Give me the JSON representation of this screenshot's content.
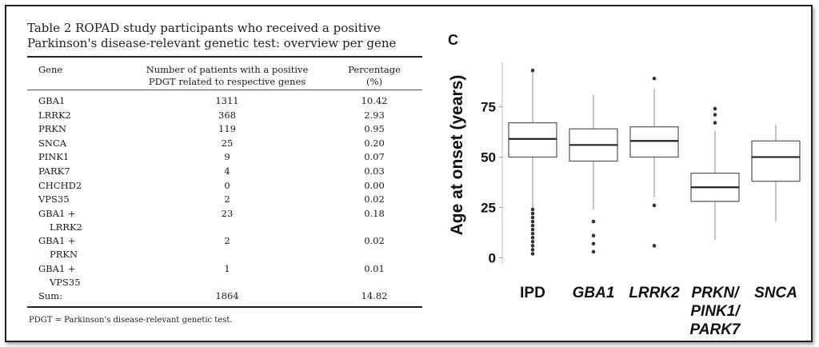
{
  "table": {
    "title_line1": "Table 2 ROPAD study participants who received a positive",
    "title_line2": "Parkinson's disease-relevant genetic test: overview per gene",
    "headers": {
      "gene": "Gene",
      "count_line1": "Number of patients with a positive",
      "count_line2": "PDGT related to respective genes",
      "pct_line1": "Percentage",
      "pct_line2": "(%)"
    },
    "rows": [
      {
        "gene": "GBA1",
        "count": "1311",
        "pct": "10.42"
      },
      {
        "gene": "LRRK2",
        "count": "368",
        "pct": "2.93"
      },
      {
        "gene": "PRKN",
        "count": "119",
        "pct": "0.95"
      },
      {
        "gene": "SNCA",
        "count": "25",
        "pct": "0.20"
      },
      {
        "gene": "PINK1",
        "count": "9",
        "pct": "0.07"
      },
      {
        "gene": "PARK7",
        "count": "4",
        "pct": "0.03"
      },
      {
        "gene": "CHCHD2",
        "count": "0",
        "pct": "0.00"
      },
      {
        "gene": "VPS35",
        "count": "2",
        "pct": "0.02"
      },
      {
        "gene": "GBA1 +",
        "gene_sub": "LRRK2",
        "count": "23",
        "pct": "0.18"
      },
      {
        "gene": "GBA1 +",
        "gene_sub": "PRKN",
        "count": "2",
        "pct": "0.02"
      },
      {
        "gene": "GBA1 +",
        "gene_sub": "VPS35",
        "count": "1",
        "pct": "0.01"
      }
    ],
    "sum": {
      "gene": "Sum:",
      "count": "1864",
      "pct": "14.82"
    },
    "footnote": "PDGT = Parkinson's disease-relevant genetic test."
  },
  "chart_data": {
    "panel_label": "C",
    "type": "boxplot",
    "ylabel": "Age at onset (years)",
    "yticks": [
      0,
      25,
      50,
      75
    ],
    "ylim": [
      -3,
      97
    ],
    "categories": [
      {
        "label_lines": [
          "IPD"
        ],
        "italic": false
      },
      {
        "label_lines": [
          "GBA1"
        ],
        "italic": true
      },
      {
        "label_lines": [
          "LRRK2"
        ],
        "italic": true
      },
      {
        "label_lines": [
          "PRKN/",
          "PINK1/",
          "PARK7"
        ],
        "italic": true
      },
      {
        "label_lines": [
          "SNCA"
        ],
        "italic": true
      }
    ],
    "boxes": [
      {
        "whisker_low": 25,
        "q1": 50,
        "median": 59,
        "q3": 67,
        "whisker_high": 93,
        "outliers": [
          2,
          4,
          6,
          8,
          10,
          12,
          14,
          16,
          18,
          20,
          22,
          24,
          93
        ]
      },
      {
        "whisker_low": 24,
        "q1": 48,
        "median": 56,
        "q3": 64,
        "whisker_high": 81,
        "outliers": [
          3,
          7,
          11,
          18
        ]
      },
      {
        "whisker_low": 30,
        "q1": 50,
        "median": 58,
        "q3": 65,
        "whisker_high": 84,
        "outliers": [
          6,
          26,
          89
        ]
      },
      {
        "whisker_low": 9,
        "q1": 28,
        "median": 35,
        "q3": 42,
        "whisker_high": 63,
        "outliers": [
          67,
          71,
          74
        ]
      },
      {
        "whisker_low": 18,
        "q1": 38,
        "median": 50,
        "q3": 58,
        "whisker_high": 66,
        "outliers": []
      }
    ],
    "colors": {
      "box_stroke": "#555555",
      "median": "#222222",
      "outlier": "#333333",
      "text": "#111111"
    }
  }
}
